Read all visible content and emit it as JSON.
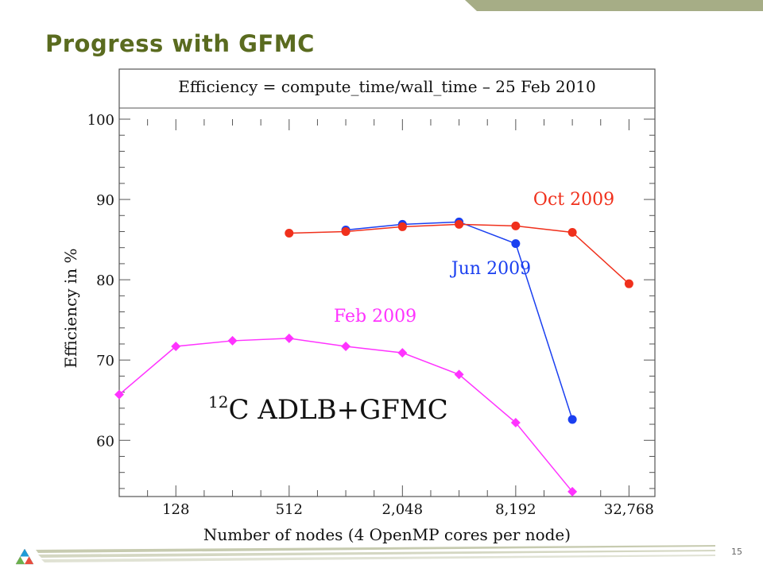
{
  "slide": {
    "title": "Progress with GFMC",
    "page_number": "15"
  },
  "colors": {
    "title": "#5a6b1f",
    "band": "#a6ad86",
    "feb": "#ff33ff",
    "jun": "#1a3ff0",
    "oct": "#f0301c"
  },
  "chart_data": {
    "type": "line",
    "title": "Efficiency = compute_time/wall_time – 25 Feb 2010",
    "annotation": "ADLB+GFMC",
    "annotation_superscript": "12",
    "annotation_suffix": "C",
    "xlabel": "Number of nodes (4 OpenMP cores per node)",
    "ylabel": "Efficiency in %",
    "x_scale": "log2",
    "xlim": [
      64,
      45000
    ],
    "ylim": [
      53,
      100
    ],
    "x_ticks": [
      128,
      512,
      2048,
      8192,
      32768
    ],
    "x_tick_labels": [
      "128",
      "512",
      "2,048",
      "8,192",
      "32,768"
    ],
    "y_ticks": [
      60,
      70,
      80,
      90,
      100
    ],
    "y_tick_labels": [
      "60",
      "70",
      "80",
      "90",
      "100"
    ],
    "grid": false,
    "series": [
      {
        "name": "Feb 2009",
        "color": "#ff33ff",
        "marker": "diamond",
        "points": [
          [
            64,
            65.7
          ],
          [
            128,
            71.7
          ],
          [
            256,
            72.4
          ],
          [
            512,
            72.7
          ],
          [
            1024,
            71.7
          ],
          [
            2048,
            70.9
          ],
          [
            4096,
            68.2
          ],
          [
            8192,
            62.2
          ],
          [
            16384,
            53.6
          ]
        ]
      },
      {
        "name": "Jun 2009",
        "color": "#1a3ff0",
        "marker": "circle",
        "points": [
          [
            1024,
            86.2
          ],
          [
            2048,
            86.9
          ],
          [
            4096,
            87.2
          ],
          [
            8192,
            84.5
          ],
          [
            16384,
            62.6
          ]
        ]
      },
      {
        "name": "Oct 2009",
        "color": "#f0301c",
        "marker": "circle",
        "points": [
          [
            512,
            85.8
          ],
          [
            1024,
            86.0
          ],
          [
            2048,
            86.6
          ],
          [
            4096,
            86.9
          ],
          [
            8192,
            86.7
          ],
          [
            16384,
            85.9
          ],
          [
            32768,
            79.5
          ]
        ]
      }
    ]
  }
}
